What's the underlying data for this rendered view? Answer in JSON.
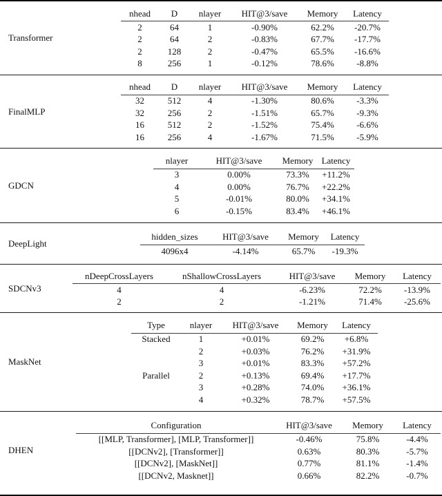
{
  "table": {
    "metric_columns_note": "per-section hyperparameter columns plus shared metrics",
    "colors": {
      "background": "#ffffff",
      "text": "#111111",
      "rule": "#000000",
      "header_underline": "#3a3a3a"
    },
    "sections": [
      {
        "model": "Transformer",
        "columns": [
          "nhead",
          "D",
          "nlayer",
          "HIT@3/save",
          "Memory",
          "Latency"
        ],
        "rows": [
          [
            "2",
            "64",
            "1",
            "-0.90%",
            "62.2%",
            "-20.7%"
          ],
          [
            "2",
            "64",
            "2",
            "-0.83%",
            "67.7%",
            "-17.7%"
          ],
          [
            "2",
            "128",
            "2",
            "-0.47%",
            "65.5%",
            "-16.6%"
          ],
          [
            "8",
            "256",
            "1",
            "-0.12%",
            "78.6%",
            "-8.8%"
          ]
        ]
      },
      {
        "model": "FinalMLP",
        "columns": [
          "nhead",
          "D",
          "nlayer",
          "HIT@3/save",
          "Memory",
          "Latency"
        ],
        "rows": [
          [
            "32",
            "512",
            "4",
            "-1.30%",
            "80.6%",
            "-3.3%"
          ],
          [
            "32",
            "256",
            "2",
            "-1.51%",
            "65.7%",
            "-9.3%"
          ],
          [
            "16",
            "512",
            "2",
            "-1.52%",
            "75.4%",
            "-6.6%"
          ],
          [
            "16",
            "256",
            "4",
            "-1.67%",
            "71.5%",
            "-5.9%"
          ]
        ]
      },
      {
        "model": "GDCN",
        "columns": [
          "nlayer",
          "HIT@3/save",
          "Memory",
          "Latency"
        ],
        "rows": [
          [
            "3",
            "0.00%",
            "73.3%",
            "+11.2%"
          ],
          [
            "4",
            "0.00%",
            "76.7%",
            "+22.2%"
          ],
          [
            "5",
            "-0.01%",
            "80.0%",
            "+34.1%"
          ],
          [
            "6",
            "-0.15%",
            "83.4%",
            "+46.1%"
          ]
        ]
      },
      {
        "model": "DeepLight",
        "columns": [
          "hidden_sizes",
          "HIT@3/save",
          "Memory",
          "Latency"
        ],
        "rows": [
          [
            "4096x4",
            "-4.14%",
            "65.7%",
            "-19.3%"
          ]
        ]
      },
      {
        "model": "SDCNv3",
        "columns": [
          "nDeepCrossLayers",
          "nShallowCrossLayers",
          "HIT@3/save",
          "Memory",
          "Latency"
        ],
        "rows": [
          [
            "4",
            "4",
            "-6.23%",
            "72.2%",
            "-13.9%"
          ],
          [
            "2",
            "2",
            "-1.21%",
            "71.4%",
            "-25.6%"
          ]
        ]
      },
      {
        "model": "MaskNet",
        "columns": [
          "Type",
          "nlayer",
          "HIT@3/save",
          "Memory",
          "Latency"
        ],
        "rows": [
          [
            "Stacked",
            "1",
            "+0.01%",
            "69.2%",
            "+6.8%"
          ],
          [
            "",
            "2",
            "+0.03%",
            "76.2%",
            "+31.9%"
          ],
          [
            "",
            "3",
            "+0.01%",
            "83.3%",
            "+57.2%"
          ],
          [
            "Parallel",
            "2",
            "+0.13%",
            "69.4%",
            "+17.7%"
          ],
          [
            "",
            "3",
            "+0.28%",
            "74.0%",
            "+36.1%"
          ],
          [
            "",
            "4",
            "+0.32%",
            "78.7%",
            "+57.5%"
          ]
        ]
      },
      {
        "model": "DHEN",
        "columns": [
          "Configuration",
          "HIT@3/save",
          "Memory",
          "Latency"
        ],
        "rows": [
          [
            "[[MLP, Transformer], [MLP, Transformer]]",
            "-0.46%",
            "75.8%",
            "-4.4%"
          ],
          [
            "[[DCNv2], [Transformer]]",
            "0.63%",
            "80.3%",
            "-5.7%"
          ],
          [
            "[[DCNv2], [MaskNet]]",
            "0.77%",
            "81.1%",
            "-1.4%"
          ],
          [
            "[[DCNv2, Masknet]]",
            "0.66%",
            "82.2%",
            "-0.7%"
          ]
        ]
      }
    ]
  }
}
